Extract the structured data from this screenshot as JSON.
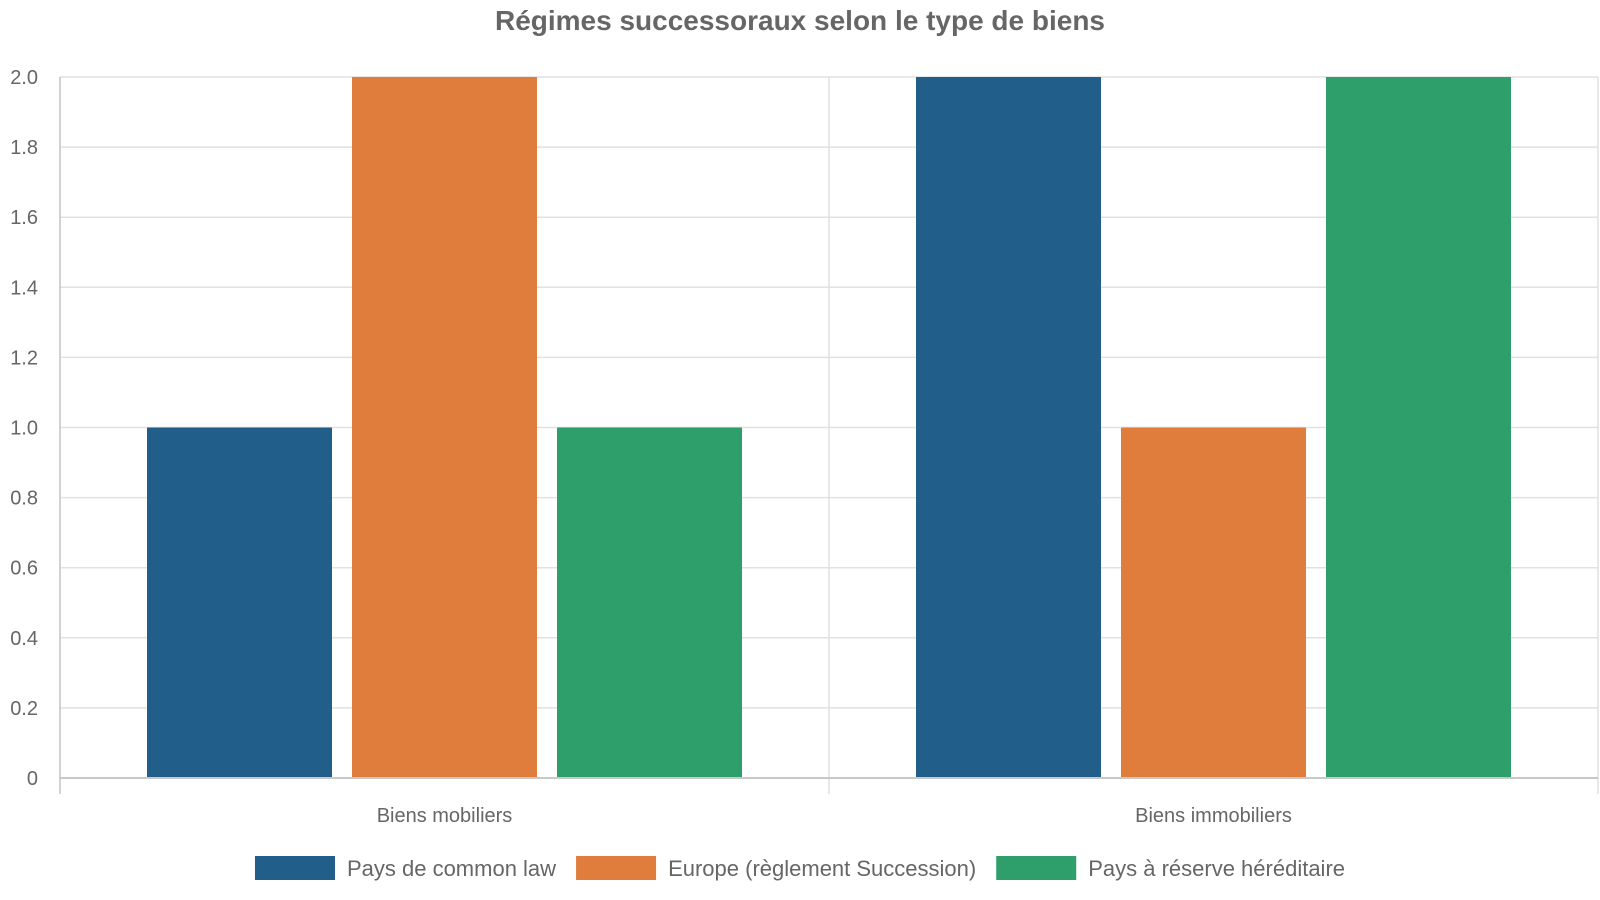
{
  "chart_data": {
    "type": "bar",
    "title": "Régimes successoraux selon le type de biens",
    "xlabel": "",
    "ylabel": "",
    "categories": [
      "Biens mobiliers",
      "Biens immobiliers"
    ],
    "series": [
      {
        "name": "Pays de common law",
        "color": "#215e89",
        "values": [
          1,
          2
        ]
      },
      {
        "name": "Europe (règlement Succession)",
        "color": "#e07c3c",
        "values": [
          2,
          1
        ]
      },
      {
        "name": "Pays à réserve héréditaire",
        "color": "#2e9e6b",
        "values": [
          1,
          2
        ]
      }
    ],
    "ylim": [
      0,
      2
    ],
    "yticks": [
      "0",
      "0.2",
      "0.4",
      "0.6",
      "0.8",
      "1.0",
      "1.2",
      "1.4",
      "1.6",
      "1.8",
      "2.0"
    ],
    "grid": true,
    "legend_position": "bottom"
  }
}
